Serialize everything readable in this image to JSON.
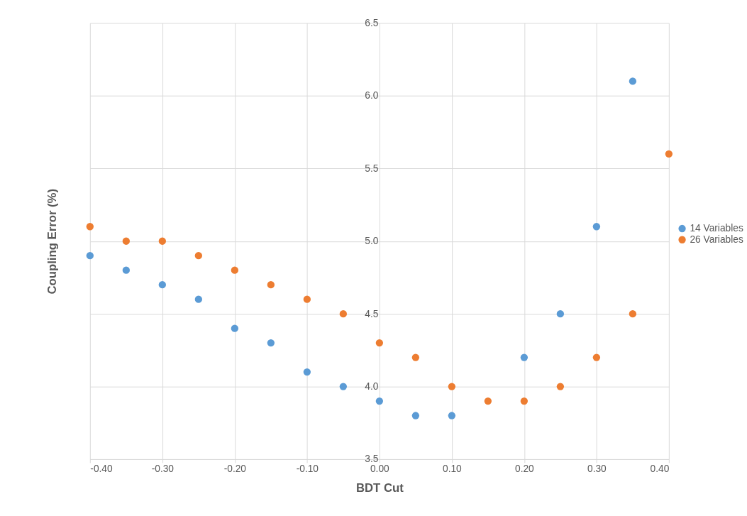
{
  "chart_data": {
    "type": "scatter",
    "xlabel": "BDT Cut",
    "ylabel": "Coupling Error (%)",
    "x": [
      -0.4,
      -0.35,
      -0.3,
      -0.25,
      -0.2,
      -0.15,
      -0.1,
      -0.05,
      0.0,
      0.05,
      0.1,
      0.15,
      0.2,
      0.25,
      0.3,
      0.35,
      0.4
    ],
    "series": [
      {
        "name": "14 Variables",
        "color": "#5b9bd5",
        "values": [
          4.9,
          4.8,
          4.7,
          4.6,
          4.4,
          4.3,
          4.1,
          4.0,
          3.9,
          3.8,
          3.8,
          null,
          4.2,
          4.5,
          5.1,
          6.1,
          null
        ]
      },
      {
        "name": "26 Variables",
        "color": "#ed7d31",
        "values": [
          5.1,
          5.0,
          5.0,
          4.9,
          4.8,
          4.7,
          4.6,
          4.5,
          4.3,
          4.2,
          4.0,
          3.9,
          3.9,
          4.0,
          4.2,
          4.5,
          5.6
        ]
      }
    ],
    "xlim": [
      -0.4,
      0.4
    ],
    "ylim": [
      3.5,
      6.5
    ],
    "xticks": [
      {
        "value": -0.4,
        "label": "-0.40"
      },
      {
        "value": -0.3,
        "label": "-0.30"
      },
      {
        "value": -0.2,
        "label": "-0.20"
      },
      {
        "value": -0.1,
        "label": "-0.10"
      },
      {
        "value": 0.0,
        "label": "0.00"
      },
      {
        "value": 0.1,
        "label": "0.10"
      },
      {
        "value": 0.2,
        "label": "0.20"
      },
      {
        "value": 0.3,
        "label": "0.30"
      },
      {
        "value": 0.4,
        "label": "0.40"
      }
    ],
    "yticks": [
      {
        "value": 3.5,
        "label": "3.5"
      },
      {
        "value": 4.0,
        "label": "4.0"
      },
      {
        "value": 4.5,
        "label": "4.5"
      },
      {
        "value": 5.0,
        "label": "5.0"
      },
      {
        "value": 5.5,
        "label": "5.5"
      },
      {
        "value": 6.0,
        "label": "6.0"
      },
      {
        "value": 6.5,
        "label": "6.5"
      }
    ],
    "grid": true,
    "legend": "right",
    "marker": "circle"
  }
}
